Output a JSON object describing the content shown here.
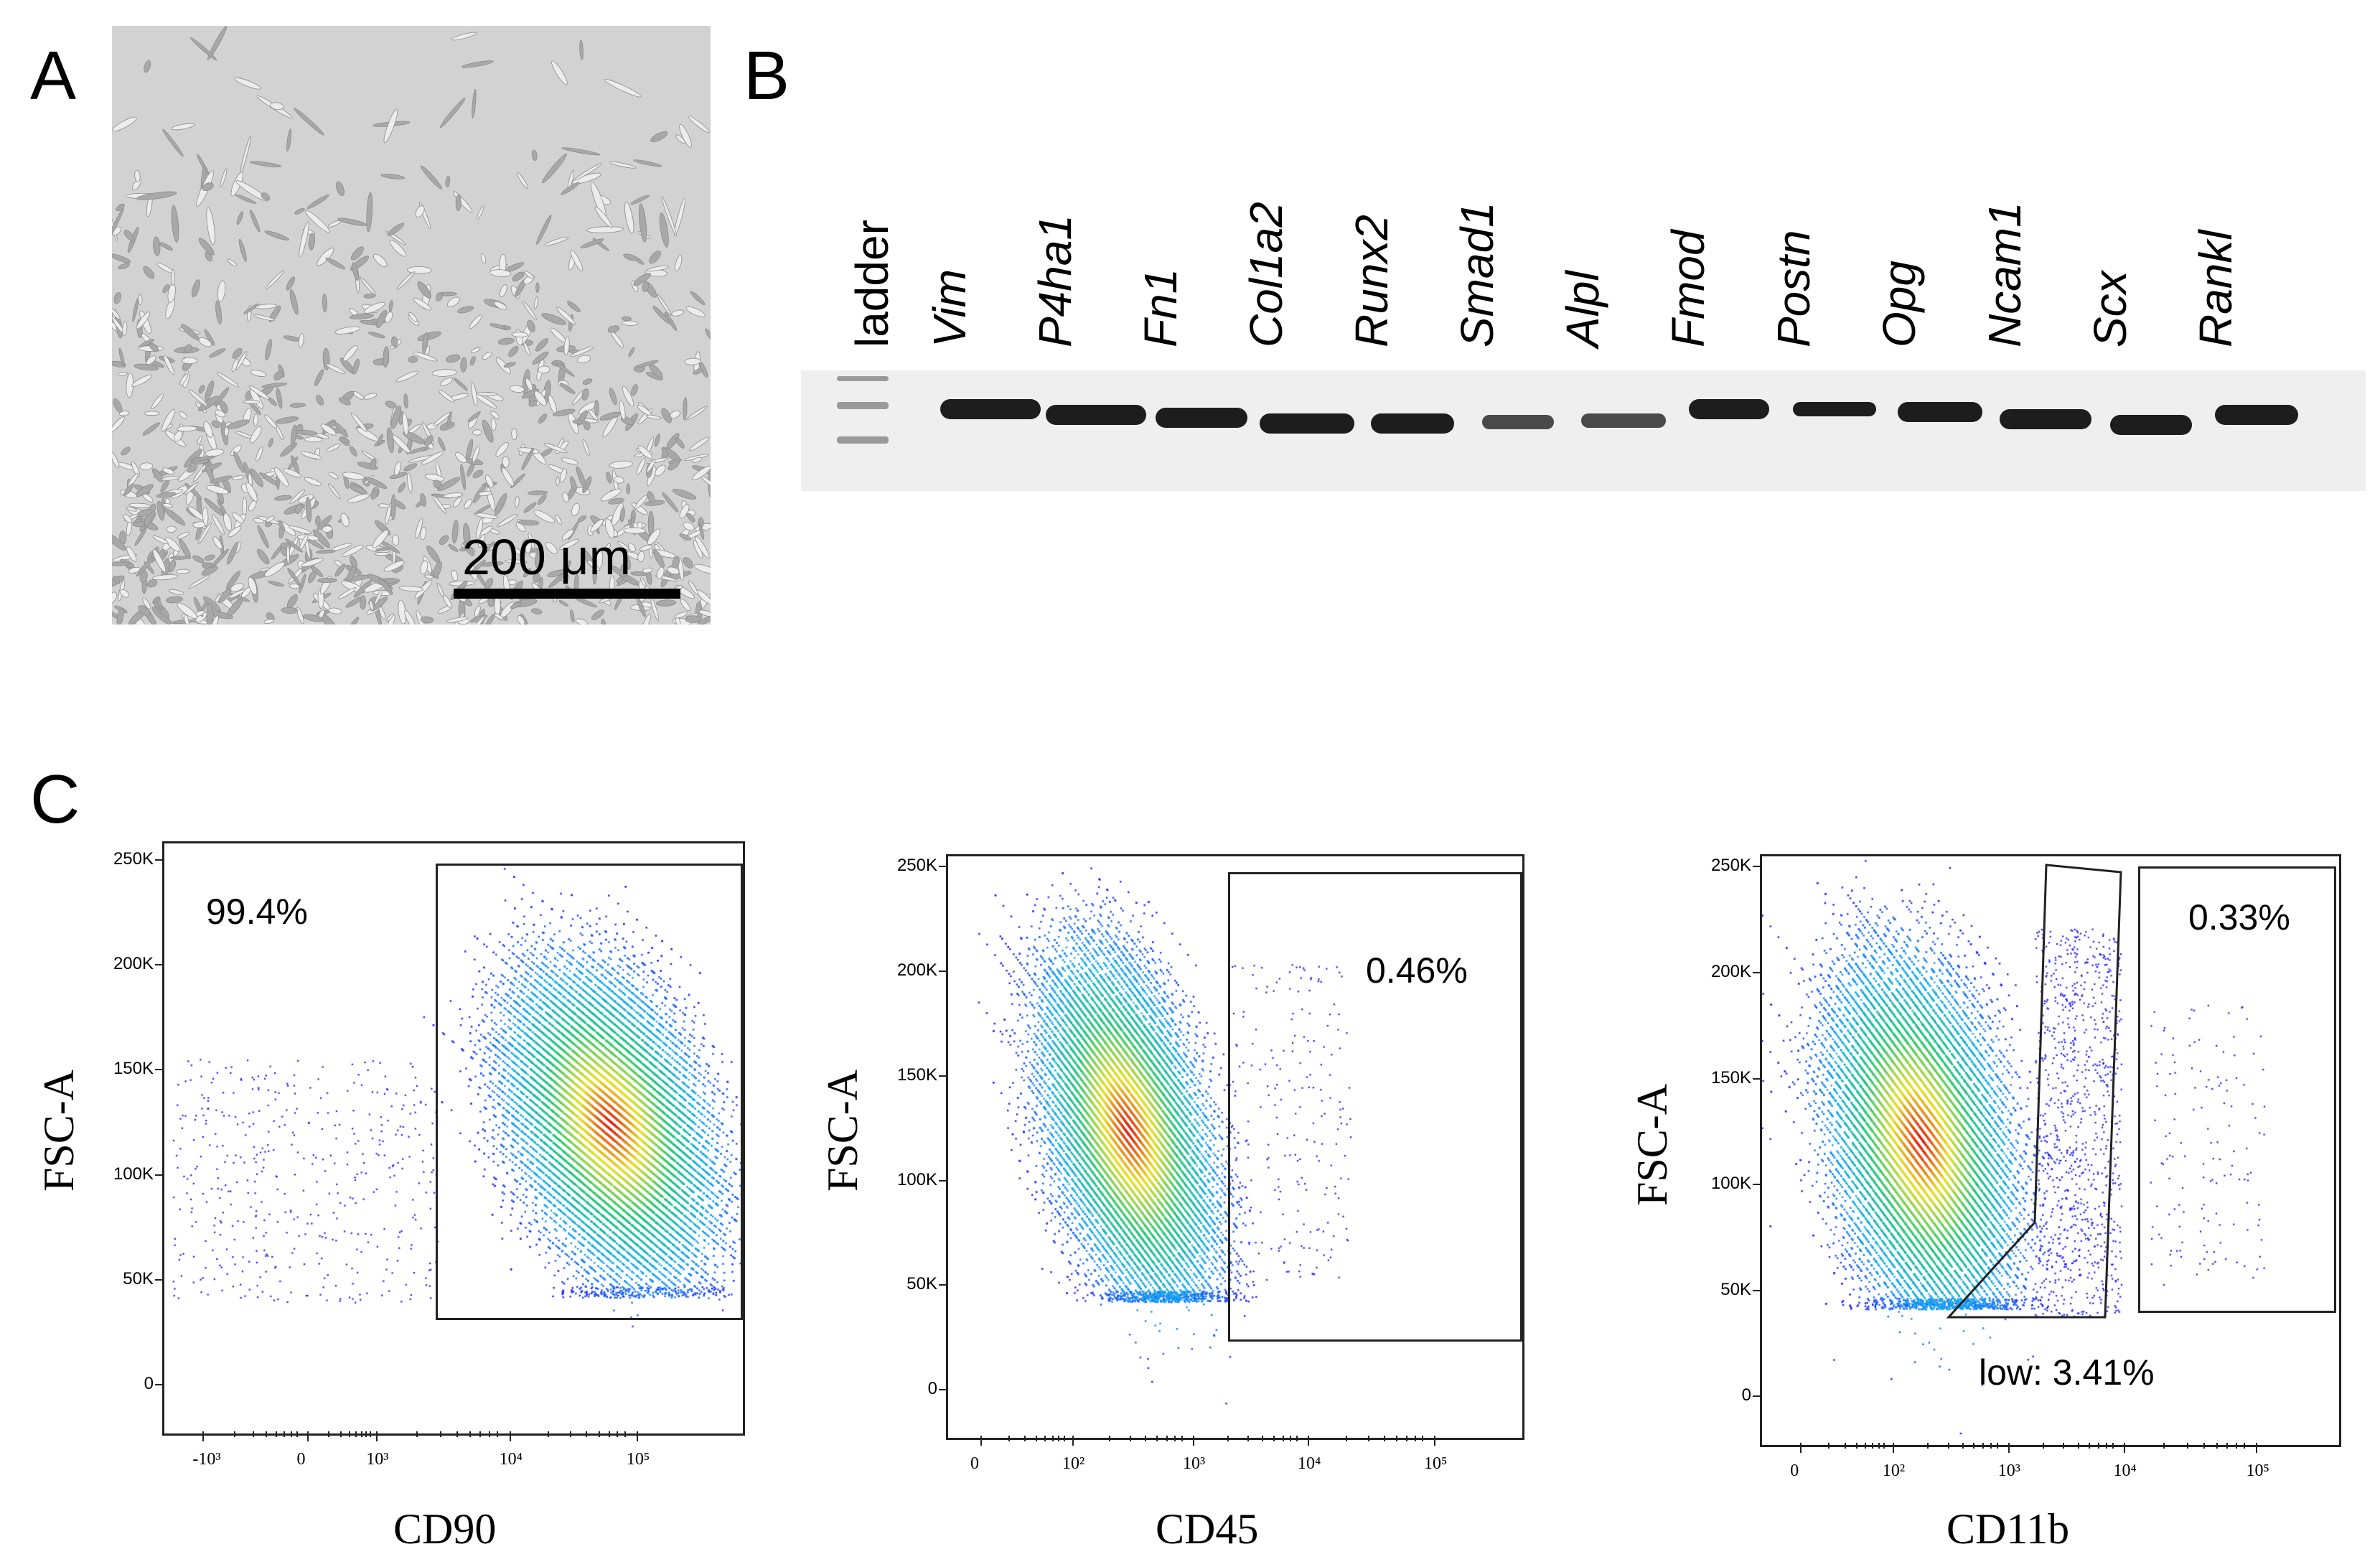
{
  "figure": {
    "panel_a": {
      "letter": "A",
      "scale_bar_label": "200 μm"
    },
    "panel_b": {
      "letter": "B",
      "ladder_label": "ladder",
      "lanes": [
        "Vim",
        "P4ha1",
        "Fn1",
        "Col1a2",
        "Runx2",
        "Smad1",
        "Alpl",
        "Fmod",
        "Postn",
        "Opg",
        "Ncam1",
        "Scx",
        "Rankl"
      ]
    },
    "panel_c": {
      "letter": "C",
      "plots": [
        {
          "x_label": "CD90",
          "y_label": "FSC-A",
          "y_ticks": [
            "250K",
            "200K",
            "150K",
            "100K",
            "50K",
            "0"
          ],
          "x_ticks": [
            "-10³",
            "0",
            "10³",
            "10⁴",
            "10⁵"
          ],
          "gates": [
            {
              "label": "99.4%"
            }
          ]
        },
        {
          "x_label": "CD45",
          "y_label": "FSC-A",
          "y_ticks": [
            "250K",
            "200K",
            "150K",
            "100K",
            "50K",
            "0"
          ],
          "x_ticks": [
            "0",
            "10²",
            "10³",
            "10⁴",
            "10⁵"
          ],
          "gates": [
            {
              "label": "0.46%"
            }
          ]
        },
        {
          "x_label": "CD11b",
          "y_label": "FSC-A",
          "y_ticks": [
            "250K",
            "200K",
            "150K",
            "100K",
            "50K",
            "0"
          ],
          "x_ticks": [
            "0",
            "10²",
            "10³",
            "10⁴",
            "10⁵"
          ],
          "gates": [
            {
              "label": "0.33%"
            },
            {
              "label": "low: 3.41%"
            }
          ]
        }
      ]
    }
  },
  "colors": {
    "low": "#1a1aff",
    "mid": "#22c7a0",
    "high": "#e8e020",
    "peak": "#e01010"
  }
}
